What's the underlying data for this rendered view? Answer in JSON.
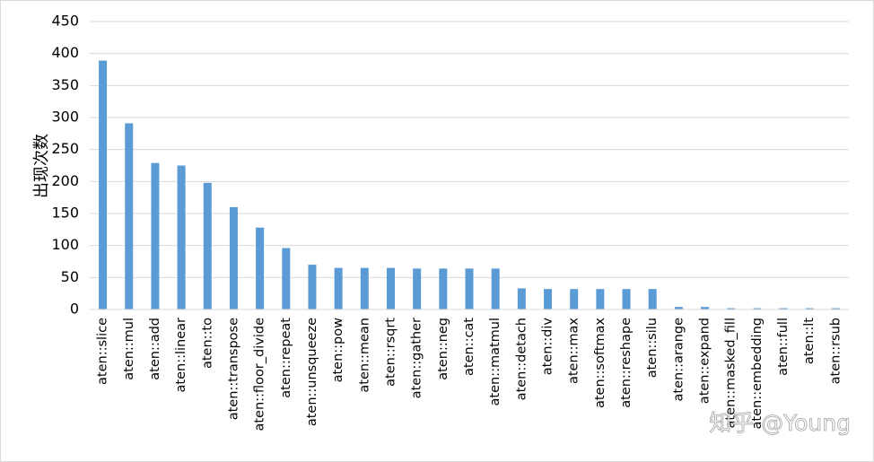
{
  "chart_data": {
    "type": "bar",
    "ylabel": "出现次数",
    "xlabel": "",
    "title": "",
    "ylim": [
      0,
      450
    ],
    "yticks": [
      0,
      50,
      100,
      150,
      200,
      250,
      300,
      350,
      400,
      450
    ],
    "grid": true,
    "legend": "none",
    "bar_color": "#5B9BD5",
    "categories": [
      "aten::slice",
      "aten::mul",
      "aten::add",
      "aten::linear",
      "aten::to",
      "aten::transpose",
      "aten::floor_divide",
      "aten::repeat",
      "aten::unsqueeze",
      "aten::pow",
      "aten::mean",
      "aten::rsqrt",
      "aten::gather",
      "aten::neg",
      "aten::cat",
      "aten::matmul",
      "aten::detach",
      "aten::div",
      "aten::max",
      "aten::softmax",
      "aten::reshape",
      "aten::silu",
      "aten::arange",
      "aten::expand",
      "aten::masked_fill",
      "aten::embedding",
      "aten::full",
      "aten::lt",
      "aten::rsub"
    ],
    "values": [
      389,
      291,
      229,
      225,
      198,
      160,
      128,
      96,
      70,
      65,
      65,
      65,
      64,
      64,
      64,
      64,
      33,
      32,
      32,
      32,
      32,
      32,
      4,
      4,
      2,
      2,
      2,
      2,
      2
    ]
  },
  "watermark": "知乎 @Young"
}
